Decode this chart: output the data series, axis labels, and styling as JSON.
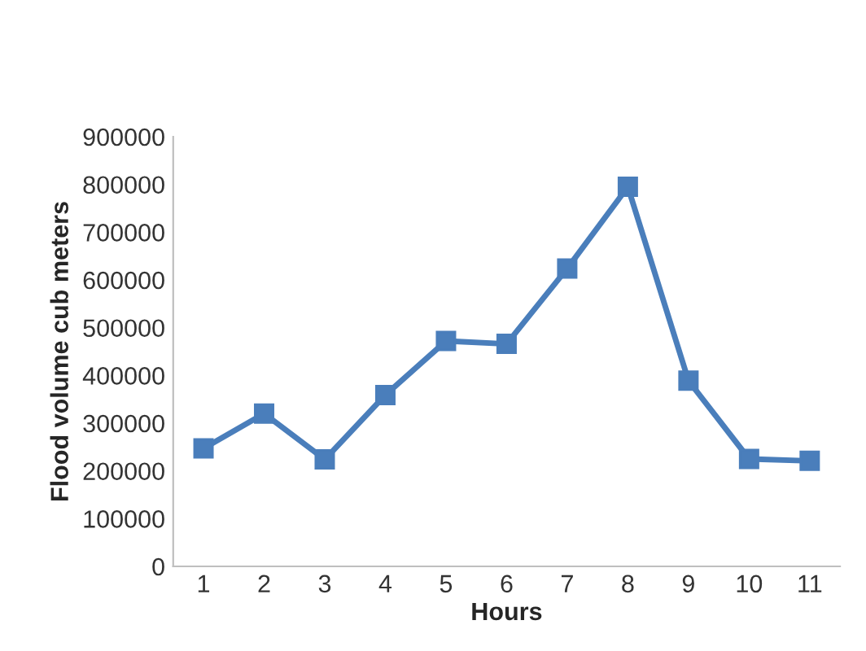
{
  "chart_data": {
    "type": "line",
    "xlabel": "Hours",
    "ylabel": "Flood volume cub meters",
    "categories": [
      "1",
      "2",
      "3",
      "4",
      "5",
      "6",
      "7",
      "8",
      "9",
      "10",
      "11"
    ],
    "series": [
      {
        "color": "#4a7ebb",
        "values": [
          247000,
          320000,
          224000,
          359000,
          472000,
          466000,
          624000,
          795000,
          389000,
          225000,
          221000
        ]
      }
    ],
    "ylim": [
      0,
      900000
    ],
    "yticks": [
      0,
      100000,
      200000,
      300000,
      400000,
      500000,
      600000,
      700000,
      800000,
      900000
    ],
    "grid": false,
    "legend": false,
    "marker": "square",
    "line_style": "solid"
  }
}
